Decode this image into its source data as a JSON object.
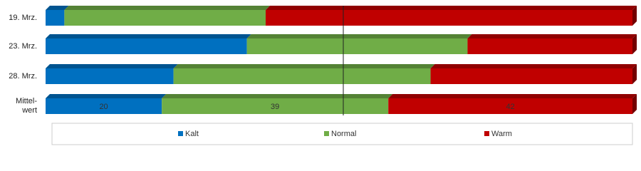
{
  "chart_data": {
    "type": "stacked-bar-horizontal",
    "categories": [
      "19. Mrz.",
      "23. Mrz.",
      "28. Mrz.",
      "Mittel-\nwert"
    ],
    "series": [
      {
        "name": "Kalt",
        "color": "#0070c0",
        "values": [
          3.2,
          34.3,
          21.8,
          19.8
        ],
        "value_labels": [
          null,
          null,
          null,
          "20"
        ]
      },
      {
        "name": "Normal",
        "color": "#70ad47",
        "values": [
          34.3,
          37.6,
          43.8,
          38.6
        ],
        "value_labels": [
          null,
          null,
          null,
          "39"
        ]
      },
      {
        "name": "Warm",
        "color": "#c00000",
        "values": [
          62.5,
          28.1,
          34.4,
          41.6
        ],
        "value_labels": [
          null,
          null,
          null,
          "42"
        ]
      }
    ],
    "xlim": [
      0,
      100
    ],
    "legend": "bottom"
  }
}
